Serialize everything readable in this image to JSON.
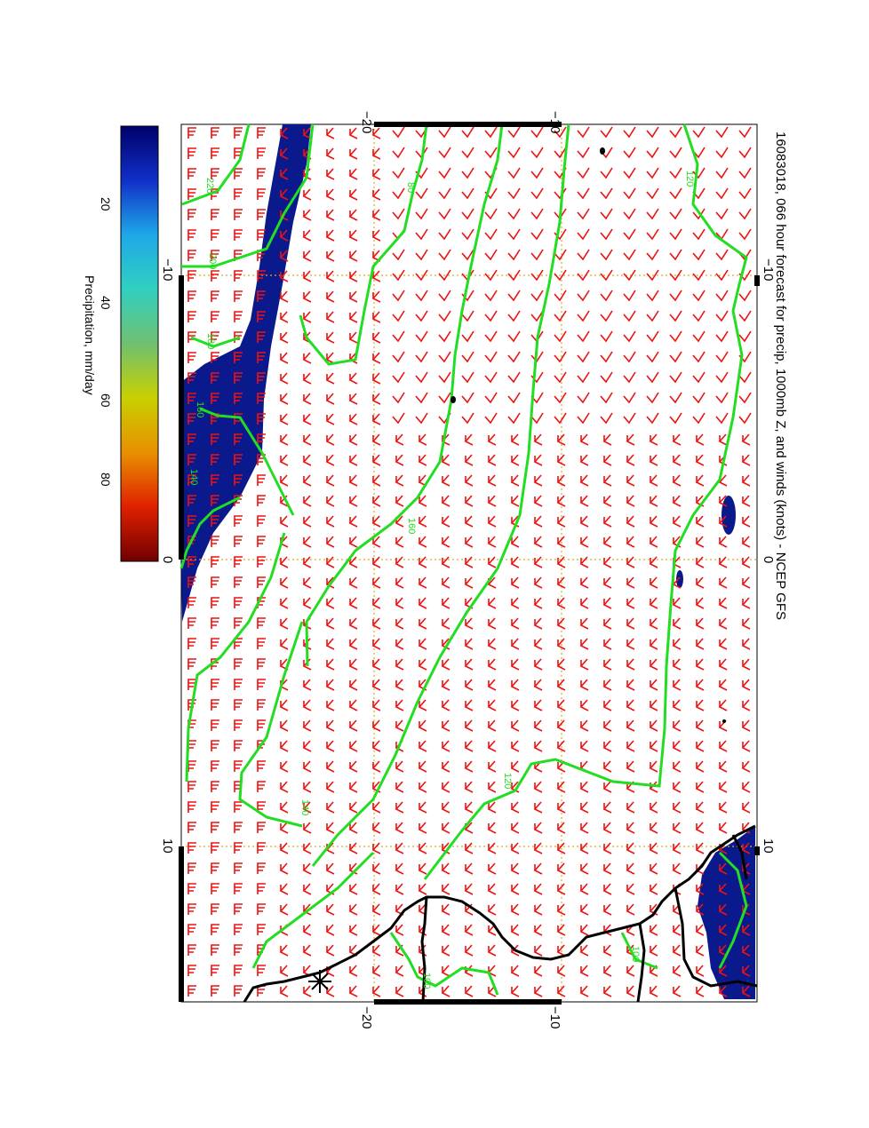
{
  "title": "16083018, 066 hour forecast for precip, 1000mb Z, and winds (knots) - NCEP GFS",
  "colorbar": {
    "label": "Precipitation, mm/day",
    "ticks": [
      "20",
      "40",
      "60",
      "80"
    ],
    "stops": [
      "#00006a",
      "#1030c8",
      "#1fa8e8",
      "#30d0c0",
      "#70c070",
      "#c8d000",
      "#e89000",
      "#e02000",
      "#700000"
    ]
  },
  "axes": {
    "top_ticks": [
      "−20",
      "−10"
    ],
    "bottom_ticks": [
      "−20",
      "−10"
    ],
    "left_ticks": [
      "−10",
      "0",
      "10"
    ],
    "right_ticks": [
      "−10",
      "0",
      "10"
    ]
  },
  "contour_labels": [
    "120",
    "220",
    "80",
    "200",
    "180",
    "160",
    "140",
    "160",
    "140",
    "120",
    "100",
    "100"
  ],
  "colors": {
    "contour": "#22dd22",
    "wind_barb": "#ee1111",
    "precip": "#0a1a8c",
    "coast": "#000000",
    "grid": "#ddaa22"
  }
}
